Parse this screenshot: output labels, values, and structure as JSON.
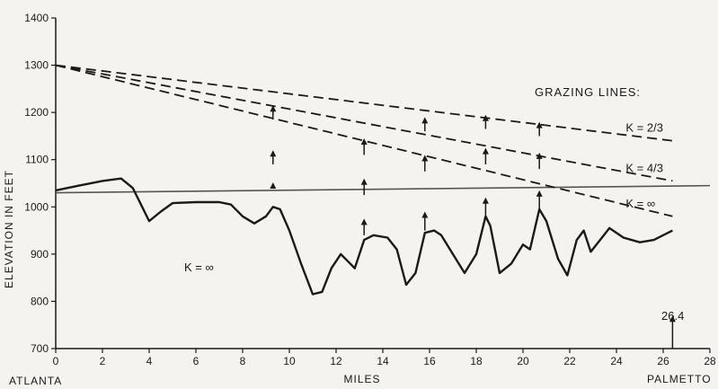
{
  "chart_data": {
    "type": "line",
    "xlabel": "MILES",
    "ylabel": "ELEVATION IN FEET",
    "x_start_label": "ATLANTA",
    "x_end_label": "PALMETTO",
    "xlim": [
      0,
      28
    ],
    "ylim": [
      700,
      1400
    ],
    "x_ticks": [
      0,
      2,
      4,
      6,
      8,
      10,
      12,
      14,
      16,
      18,
      20,
      22,
      24,
      26,
      28
    ],
    "y_ticks": [
      700,
      800,
      900,
      1000,
      1100,
      1200,
      1300,
      1400
    ],
    "grid": false,
    "legend_title": "GRAZING LINES:",
    "profile_label": "K = ∞",
    "series": [
      {
        "role": "terrain",
        "points": [
          [
            0,
            1035
          ],
          [
            1,
            1045
          ],
          [
            2,
            1055
          ],
          [
            2.8,
            1060
          ],
          [
            3.3,
            1040
          ],
          [
            3.7,
            1000
          ],
          [
            4,
            970
          ],
          [
            4.5,
            990
          ],
          [
            5,
            1008
          ],
          [
            6,
            1010
          ],
          [
            7,
            1010
          ],
          [
            7.5,
            1005
          ],
          [
            8,
            980
          ],
          [
            8.5,
            965
          ],
          [
            9,
            980
          ],
          [
            9.3,
            1000
          ],
          [
            9.6,
            995
          ],
          [
            10,
            950
          ],
          [
            10.5,
            880
          ],
          [
            11,
            815
          ],
          [
            11.4,
            820
          ],
          [
            11.8,
            870
          ],
          [
            12.2,
            900
          ],
          [
            12.5,
            885
          ],
          [
            12.8,
            870
          ],
          [
            13.2,
            930
          ],
          [
            13.6,
            940
          ],
          [
            14.2,
            935
          ],
          [
            14.6,
            910
          ],
          [
            15,
            835
          ],
          [
            15.4,
            860
          ],
          [
            15.8,
            945
          ],
          [
            16.2,
            950
          ],
          [
            16.5,
            940
          ],
          [
            17,
            900
          ],
          [
            17.5,
            860
          ],
          [
            18,
            900
          ],
          [
            18.4,
            980
          ],
          [
            18.6,
            960
          ],
          [
            19,
            860
          ],
          [
            19.5,
            880
          ],
          [
            20,
            920
          ],
          [
            20.3,
            910
          ],
          [
            20.7,
            995
          ],
          [
            21,
            970
          ],
          [
            21.5,
            890
          ],
          [
            21.9,
            855
          ],
          [
            22.3,
            930
          ],
          [
            22.6,
            950
          ],
          [
            22.9,
            905
          ],
          [
            23.3,
            930
          ],
          [
            23.7,
            955
          ],
          [
            24.3,
            935
          ],
          [
            25,
            925
          ],
          [
            25.6,
            930
          ],
          [
            26,
            940
          ],
          [
            26.4,
            950
          ]
        ]
      },
      {
        "name": "K = 2/3",
        "points": [
          [
            0,
            1300
          ],
          [
            26.4,
            1140
          ]
        ]
      },
      {
        "name": "K = 4/3",
        "points": [
          [
            0,
            1300
          ],
          [
            26.4,
            1055
          ]
        ]
      },
      {
        "name": "K = ∞",
        "points": [
          [
            0,
            1300
          ],
          [
            26.4,
            980
          ]
        ]
      }
    ],
    "horizontal_line": {
      "y_start": 1030,
      "y_end": 1045
    },
    "arrows": [
      {
        "x": 9.3,
        "from": 1040,
        "to": 1052
      },
      {
        "x": 9.3,
        "from": 1090,
        "to": 1120
      },
      {
        "x": 9.3,
        "from": 1185,
        "to": 1215
      },
      {
        "x": 13.2,
        "from": 1025,
        "to": 1060
      },
      {
        "x": 13.2,
        "from": 1110,
        "to": 1145
      },
      {
        "x": 13.2,
        "from": 940,
        "to": 975
      },
      {
        "x": 15.8,
        "from": 950,
        "to": 990
      },
      {
        "x": 15.8,
        "from": 1075,
        "to": 1110
      },
      {
        "x": 15.8,
        "from": 1160,
        "to": 1190
      },
      {
        "x": 18.4,
        "from": 980,
        "to": 1020
      },
      {
        "x": 18.4,
        "from": 1090,
        "to": 1125
      },
      {
        "x": 18.4,
        "from": 1165,
        "to": 1195
      },
      {
        "x": 20.7,
        "from": 995,
        "to": 1035
      },
      {
        "x": 20.7,
        "from": 1080,
        "to": 1115
      },
      {
        "x": 20.7,
        "from": 1150,
        "to": 1180
      },
      {
        "x": 26.4,
        "from": 700,
        "to": 770
      }
    ],
    "end_marker_label": "26.4"
  }
}
